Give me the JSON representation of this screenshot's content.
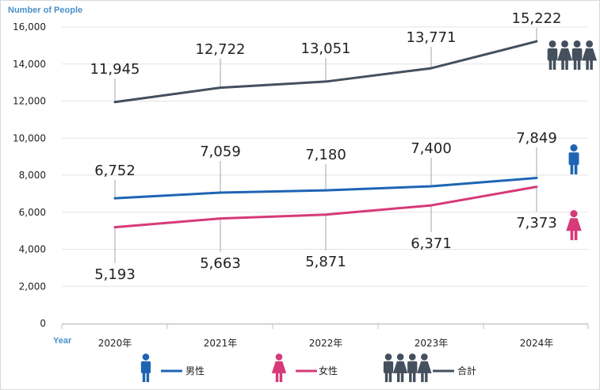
{
  "chart_data": {
    "type": "line",
    "ylabel": "Number of People",
    "xlabel": "Year",
    "categories": [
      "2020年",
      "2021年",
      "2022年",
      "2023年",
      "2024年"
    ],
    "ylim": [
      0,
      16000
    ],
    "yticks": [
      0,
      2000,
      4000,
      6000,
      8000,
      10000,
      12000,
      14000,
      16000
    ],
    "ytick_labels": [
      "0",
      "2,000",
      "4,000",
      "6,000",
      "8,000",
      "10,000",
      "12,000",
      "14,000",
      "16,000"
    ],
    "grid": true,
    "legend_position": "bottom",
    "series": [
      {
        "key": "male",
        "name": "男性",
        "color": "#1f64b4",
        "icon": "male-person-icon",
        "values": [
          6752,
          7059,
          7180,
          7400,
          7849
        ],
        "labels": [
          "6,752",
          "7,059",
          "7,180",
          "7,400",
          "7,849"
        ]
      },
      {
        "key": "female",
        "name": "女性",
        "color": "#d63a78",
        "icon": "female-person-icon",
        "values": [
          5193,
          5663,
          5871,
          6371,
          7373
        ],
        "labels": [
          "5,193",
          "5,663",
          "5,871",
          "6,371",
          "7,373"
        ]
      },
      {
        "key": "total",
        "name": "合計",
        "color": "#44505e",
        "icon": "group-people-icon",
        "values": [
          11945,
          12722,
          13051,
          13771,
          15222
        ],
        "labels": [
          "11,945",
          "12,722",
          "13,051",
          "13,771",
          "15,222"
        ]
      }
    ]
  }
}
